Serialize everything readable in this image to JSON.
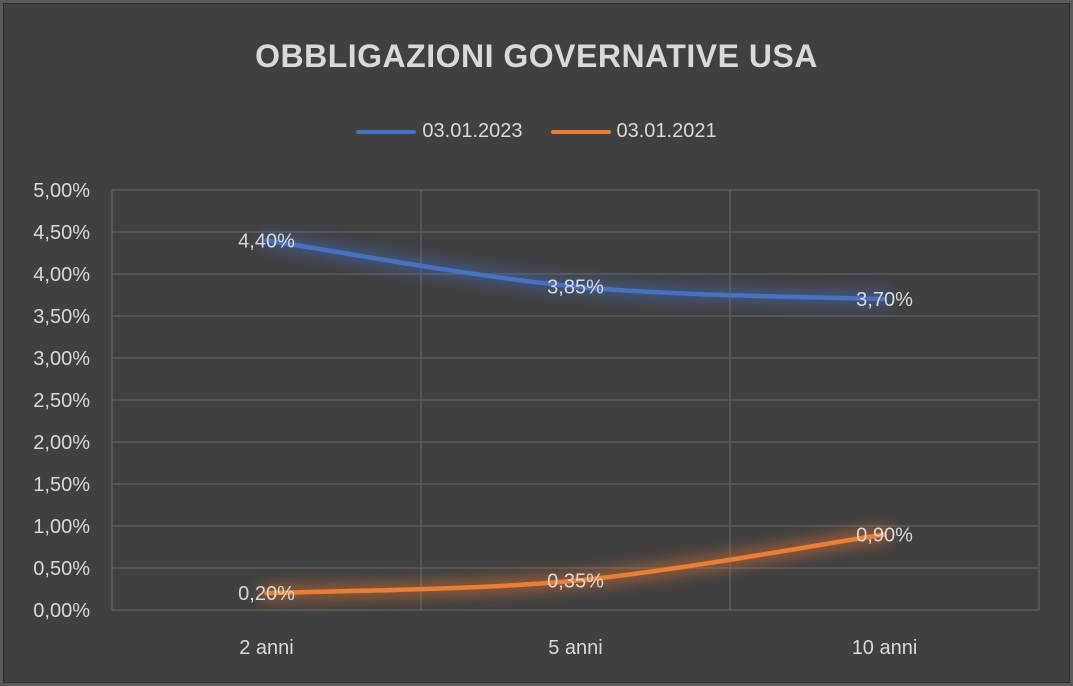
{
  "chart_data": {
    "type": "line",
    "title": "OBBLIGAZIONI GOVERNATIVE USA",
    "categories": [
      "2 anni",
      "5 anni",
      "10 anni"
    ],
    "series": [
      {
        "name": "03.01.2023",
        "values": [
          4.4,
          3.85,
          3.7
        ],
        "labels": [
          "4,40%",
          "3,85%",
          "3,70%"
        ],
        "color": "#4472c4"
      },
      {
        "name": "03.01.2021",
        "values": [
          0.2,
          0.35,
          0.9
        ],
        "labels": [
          "0,20%",
          "0,35%",
          "0,90%"
        ],
        "color": "#ed7d31"
      }
    ],
    "ylim": [
      0,
      5
    ],
    "ytick_step": 0.5,
    "yticks": [
      "0,00%",
      "0,50%",
      "1,00%",
      "1,50%",
      "2,00%",
      "2,50%",
      "3,00%",
      "3,50%",
      "4,00%",
      "4,50%",
      "5,00%"
    ],
    "grid": true,
    "legend_position": "top",
    "background": "#404040"
  }
}
